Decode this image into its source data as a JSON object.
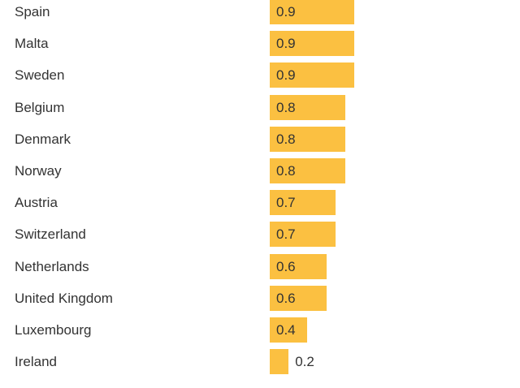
{
  "chart_data": {
    "type": "bar",
    "orientation": "horizontal",
    "categories": [
      "Spain",
      "Malta",
      "Sweden",
      "Belgium",
      "Denmark",
      "Norway",
      "Austria",
      "Switzerland",
      "Netherlands",
      "United Kingdom",
      "Luxembourg",
      "Ireland"
    ],
    "values": [
      0.9,
      0.9,
      0.9,
      0.8,
      0.8,
      0.8,
      0.7,
      0.7,
      0.6,
      0.6,
      0.4,
      0.2
    ],
    "value_labels": [
      "0.9",
      "0.9",
      "0.9",
      "0.8",
      "0.8",
      "0.8",
      "0.7",
      "0.7",
      "0.6",
      "0.6",
      "0.4",
      "0.2"
    ],
    "bar_color": "#fbc041",
    "text_color": "#333333",
    "grid": false,
    "legend": "none"
  }
}
